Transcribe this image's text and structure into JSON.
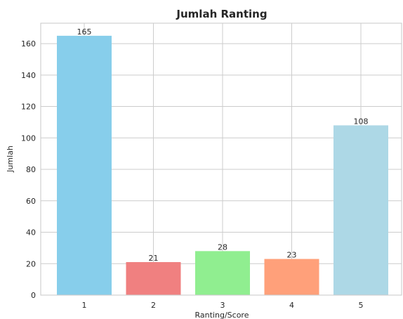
{
  "chart_data": {
    "type": "bar",
    "title": "Jumlah Ranting",
    "xlabel": "Ranting/Score",
    "ylabel": "Jumlah",
    "categories": [
      "1",
      "2",
      "3",
      "4",
      "5"
    ],
    "values": [
      165,
      21,
      28,
      23,
      108
    ],
    "data_labels": [
      "165",
      "21",
      "28",
      "23",
      "108"
    ],
    "colors": [
      "#87ceeb",
      "#f08080",
      "#90ee90",
      "#ffa07a",
      "#add8e6"
    ],
    "ylim": [
      0,
      173
    ],
    "yticks": [
      0,
      20,
      40,
      60,
      80,
      100,
      120,
      140,
      160
    ],
    "grid": true,
    "legend": "none"
  }
}
